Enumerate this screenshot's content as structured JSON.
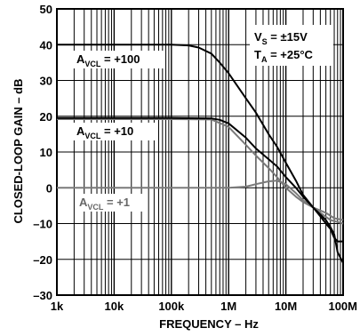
{
  "chart_data": {
    "type": "line",
    "xlabel": "FREQUENCY – Hz",
    "ylabel": "CLOSED-LOOP GAIN – dB",
    "x_scale": "log",
    "xlim": [
      1000,
      100000000
    ],
    "ylim": [
      -30,
      50
    ],
    "x_ticks": [
      {
        "value": 1000,
        "label": "1k"
      },
      {
        "value": 10000,
        "label": "10k"
      },
      {
        "value": 100000,
        "label": "100k"
      },
      {
        "value": 1000000,
        "label": "1M"
      },
      {
        "value": 10000000,
        "label": "10M"
      },
      {
        "value": 100000000,
        "label": "100M"
      }
    ],
    "y_ticks": [
      {
        "value": 50,
        "label": "50"
      },
      {
        "value": 40,
        "label": "40"
      },
      {
        "value": 30,
        "label": "30"
      },
      {
        "value": 20,
        "label": "20"
      },
      {
        "value": 10,
        "label": "10"
      },
      {
        "value": 0,
        "label": "0"
      },
      {
        "value": -10,
        "label": "–10"
      },
      {
        "value": -20,
        "label": "–20"
      },
      {
        "value": -30,
        "label": "–30"
      }
    ],
    "grid": true,
    "conditions": {
      "vs": {
        "main": "V",
        "sub": "S",
        "rest": " = ±15V"
      },
      "ta": {
        "main": "T",
        "sub": "A",
        "rest": " = +25°C"
      }
    },
    "series": [
      {
        "label_main": "A",
        "label_sub": "VCL",
        "label_rest": " = +100",
        "color": "#000000",
        "x": [
          1000,
          10000,
          100000,
          200000,
          300000,
          500000,
          700000,
          1000000,
          2000000,
          3000000,
          5000000,
          7000000,
          10000000,
          15000000,
          20000000,
          30000000,
          40000000,
          50000000,
          60000000,
          70000000,
          80000000,
          100000000
        ],
        "y": [
          40,
          40,
          40,
          39.8,
          39.2,
          37.5,
          35,
          32,
          25,
          21,
          15,
          11.5,
          7,
          2,
          -2,
          -5.5,
          -8,
          -10,
          -11.5,
          -14,
          -15,
          -15
        ]
      },
      {
        "label_main": "A",
        "label_sub": "VCL",
        "label_rest": " = +10",
        "color": "#000000",
        "x": [
          1000,
          10000,
          100000,
          500000,
          700000,
          1000000,
          2000000,
          3000000,
          5000000,
          7000000,
          10000000,
          15000000,
          20000000,
          30000000,
          40000000,
          50000000,
          60000000,
          70000000,
          80000000,
          100000000
        ],
        "y": [
          19.5,
          19.5,
          19.5,
          19.4,
          19,
          18,
          14,
          11,
          8,
          6,
          3,
          0,
          -2.5,
          -5.5,
          -7.5,
          -9,
          -11,
          -13,
          -18,
          -21
        ]
      },
      {
        "label_main": "A",
        "label_sub": "VCL",
        "label_rest": " = +1",
        "color": "#7a7a7a",
        "x": [
          1000,
          100000,
          300000,
          1000000,
          2000000,
          3000000,
          5000000,
          7000000,
          10000000,
          15000000,
          20000000,
          30000000,
          50000000,
          70000000,
          100000000
        ],
        "y": [
          0,
          0,
          0,
          0,
          0.3,
          1,
          1.8,
          2,
          1,
          -1.5,
          -3.5,
          -5.5,
          -7,
          -8.5,
          -9
        ]
      },
      {
        "label_main": "",
        "label_sub": "",
        "label_rest": "",
        "color": "#7a7a7a",
        "x": [
          1000,
          10000,
          100000,
          500000,
          1000000,
          2000000,
          3000000,
          5000000,
          7000000,
          10000000,
          15000000,
          20000000,
          30000000,
          40000000,
          60000000,
          100000000
        ],
        "y": [
          19.2,
          19.2,
          19.2,
          19.1,
          17,
          12,
          9,
          5.5,
          3,
          0,
          -2.5,
          -4,
          -5.5,
          -7,
          -9,
          -10
        ]
      }
    ]
  }
}
